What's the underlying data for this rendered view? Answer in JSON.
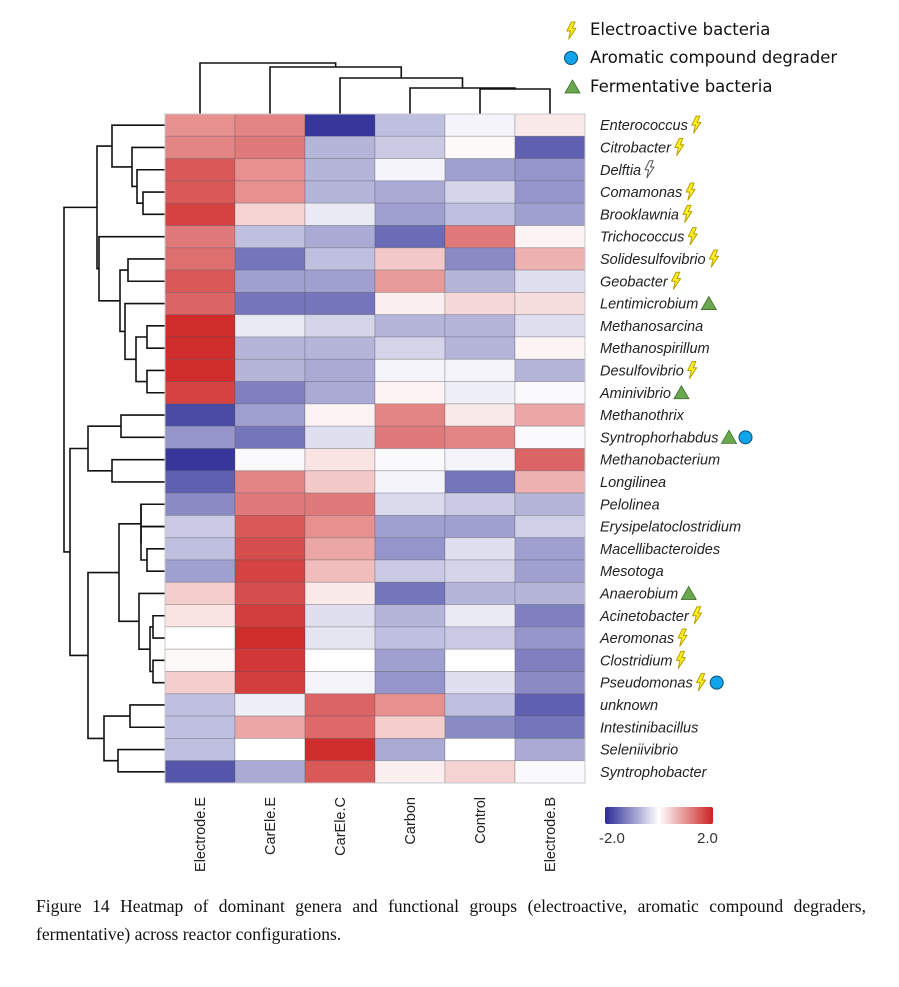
{
  "chart_data": {
    "type": "heatmap",
    "title": "",
    "columns": [
      "Electrode.E",
      "CarEle.E",
      "CarEle.C",
      "Carbon",
      "Control",
      "Electrode.B"
    ],
    "rows": [
      {
        "name": "Enterococcus",
        "markers": [
          "electroactive"
        ],
        "values": [
          1.0,
          1.1,
          -1.9,
          -0.6,
          -0.1,
          0.2
        ]
      },
      {
        "name": "Citrobacter",
        "markers": [
          "electroactive"
        ],
        "values": [
          1.1,
          1.2,
          -0.7,
          -0.5,
          0.05,
          -1.5
        ]
      },
      {
        "name": "Delftia",
        "markers": [
          "electroactive-outline"
        ],
        "values": [
          1.5,
          1.0,
          -0.7,
          -0.1,
          -0.9,
          -1.0
        ]
      },
      {
        "name": "Comamonas",
        "markers": [
          "electroactive"
        ],
        "values": [
          1.5,
          1.0,
          -0.7,
          -0.8,
          -0.4,
          -1.0
        ]
      },
      {
        "name": "Brooklawnia",
        "markers": [
          "electroactive"
        ],
        "values": [
          1.7,
          0.4,
          -0.2,
          -0.9,
          -0.6,
          -0.9
        ]
      },
      {
        "name": "Trichococcus",
        "markers": [
          "electroactive"
        ],
        "values": [
          1.2,
          -0.6,
          -0.8,
          -1.4,
          1.2,
          0.1
        ]
      },
      {
        "name": "Solidesulfovibrio",
        "markers": [
          "electroactive"
        ],
        "values": [
          1.3,
          -1.3,
          -0.6,
          0.5,
          -1.1,
          0.7
        ]
      },
      {
        "name": "Geobacter",
        "markers": [
          "electroactive"
        ],
        "values": [
          1.5,
          -0.9,
          -0.9,
          0.9,
          -0.7,
          -0.3
        ]
      },
      {
        "name": "Lentimicrobium",
        "markers": [
          "fermentative"
        ],
        "values": [
          1.4,
          -1.3,
          -1.3,
          0.15,
          0.35,
          0.3
        ]
      },
      {
        "name": "Methanosarcina",
        "markers": [],
        "values": [
          1.9,
          -0.2,
          -0.4,
          -0.7,
          -0.7,
          -0.3
        ]
      },
      {
        "name": "Methanospirillum",
        "markers": [],
        "values": [
          1.9,
          -0.7,
          -0.7,
          -0.4,
          -0.7,
          0.1
        ]
      },
      {
        "name": "Desulfovibrio",
        "markers": [
          "electroactive"
        ],
        "values": [
          1.9,
          -0.7,
          -0.8,
          -0.1,
          -0.1,
          -0.7
        ]
      },
      {
        "name": "Aminivibrio",
        "markers": [
          "fermentative"
        ],
        "values": [
          1.7,
          -1.2,
          -0.8,
          0.1,
          -0.15,
          -0.05
        ]
      },
      {
        "name": "Methanothrix",
        "markers": [],
        "values": [
          -1.7,
          -0.9,
          0.1,
          1.1,
          0.2,
          0.8
        ]
      },
      {
        "name": "Syntrophorhabdus",
        "markers": [
          "fermentative",
          "aromatic"
        ],
        "values": [
          -1.0,
          -1.3,
          -0.3,
          1.2,
          1.1,
          -0.05
        ]
      },
      {
        "name": "Methanobacterium",
        "markers": [],
        "values": [
          -1.9,
          -0.05,
          0.25,
          -0.05,
          -0.1,
          1.4
        ]
      },
      {
        "name": "Longilinea",
        "markers": [],
        "values": [
          -1.5,
          1.1,
          0.5,
          -0.1,
          -1.3,
          0.7
        ]
      },
      {
        "name": "Pelolinea",
        "markers": [],
        "values": [
          -1.1,
          1.2,
          1.2,
          -0.35,
          -0.5,
          -0.7
        ]
      },
      {
        "name": "Erysipelatoclostridium",
        "markers": [],
        "values": [
          -0.5,
          1.5,
          1.0,
          -0.9,
          -0.9,
          -0.45
        ]
      },
      {
        "name": "Macellibacteroides",
        "markers": [],
        "values": [
          -0.6,
          1.6,
          0.8,
          -1.0,
          -0.3,
          -0.9
        ]
      },
      {
        "name": "Mesotoga",
        "markers": [],
        "values": [
          -0.9,
          1.7,
          0.6,
          -0.5,
          -0.4,
          -0.9
        ]
      },
      {
        "name": "Anaerobium",
        "markers": [
          "fermentative"
        ],
        "values": [
          0.45,
          1.6,
          0.2,
          -1.3,
          -0.7,
          -0.7
        ]
      },
      {
        "name": "Acinetobacter",
        "markers": [
          "electroactive"
        ],
        "values": [
          0.25,
          1.75,
          -0.3,
          -0.7,
          -0.2,
          -1.2
        ]
      },
      {
        "name": "Aeromonas",
        "markers": [
          "electroactive"
        ],
        "values": [
          0.0,
          1.9,
          -0.25,
          -0.6,
          -0.5,
          -1.0
        ]
      },
      {
        "name": "Clostridium",
        "markers": [
          "electroactive"
        ],
        "values": [
          0.05,
          1.8,
          0.0,
          -0.9,
          0.0,
          -1.2
        ]
      },
      {
        "name": "Pseudomonas",
        "markers": [
          "electroactive",
          "aromatic"
        ],
        "values": [
          0.45,
          1.75,
          -0.1,
          -1.0,
          -0.3,
          -1.1
        ]
      },
      {
        "name": "unknown",
        "markers": [],
        "values": [
          -0.6,
          -0.15,
          1.4,
          1.0,
          -0.6,
          -1.5
        ]
      },
      {
        "name": "Intestinibacillus",
        "markers": [],
        "values": [
          -0.6,
          0.8,
          1.35,
          0.45,
          -1.1,
          -1.3
        ]
      },
      {
        "name": "Seleniivibrio",
        "markers": [],
        "values": [
          -0.6,
          0.0,
          1.9,
          -0.8,
          0.0,
          -0.8
        ]
      },
      {
        "name": "Syntrophobacter",
        "markers": [],
        "values": [
          -1.6,
          -0.8,
          1.5,
          0.15,
          0.4,
          -0.05
        ]
      }
    ],
    "color_scale": {
      "min": -2.0,
      "max": 2.0,
      "min_label": "-2.0",
      "max_label": "2.0",
      "low_color": "#2b2b96",
      "mid_color": "#ffffff",
      "high_color": "#cc2121"
    },
    "legend": [
      {
        "key": "electroactive",
        "icon": "lightning-bolt",
        "label": "Electroactive bacteria",
        "color": "#ffee22"
      },
      {
        "key": "aromatic",
        "icon": "circle",
        "label": "Aromatic compound degrader",
        "color": "#12a4e8"
      },
      {
        "key": "fermentative",
        "icon": "triangle",
        "label": "Fermentative bacteria",
        "color": "#6aa84f"
      }
    ],
    "row_dendrogram": true,
    "column_dendrogram": true
  },
  "caption": "Figure 14 Heatmap of dominant genera and functional groups (electroactive, aromatic compound degraders, fermentative) across reactor configurations."
}
